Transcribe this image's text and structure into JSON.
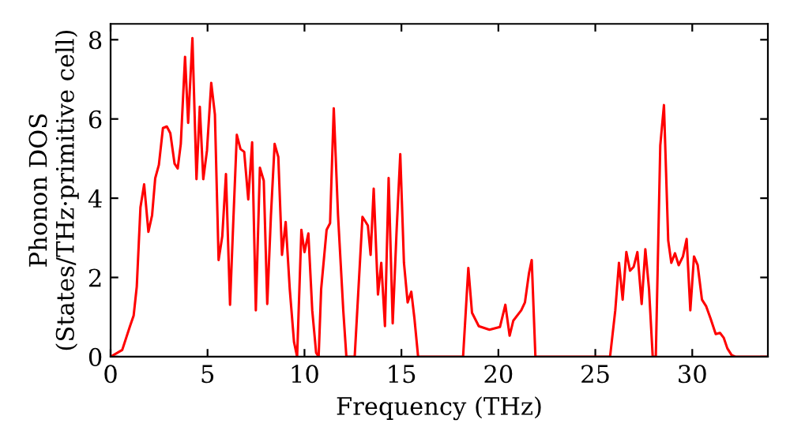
{
  "chart_data": {
    "type": "line",
    "xlabel": "Frequency (THz)",
    "ylabel": "Phonon DOS\n(States/THz·primitive cell)",
    "xlim": [
      0,
      33.9
    ],
    "ylim": [
      0,
      8.4
    ],
    "xticks": [
      0,
      5,
      10,
      15,
      20,
      25,
      30
    ],
    "yticks": [
      0,
      2,
      4,
      6,
      8
    ],
    "grid": false,
    "legend": false,
    "marker": "none",
    "line_style": "solid",
    "series": [
      {
        "color": "#ff0000",
        "x": [
          0,
          0.6,
          1.0,
          1.19,
          1.35,
          1.54,
          1.73,
          1.95,
          2.14,
          2.3,
          2.49,
          2.7,
          2.9,
          3.08,
          3.3,
          3.46,
          3.62,
          3.84,
          4.0,
          4.22,
          4.43,
          4.6,
          4.78,
          4.97,
          5.19,
          5.38,
          5.57,
          5.76,
          5.95,
          6.16,
          6.32,
          6.51,
          6.7,
          6.89,
          7.1,
          7.3,
          7.49,
          7.7,
          7.9,
          8.08,
          8.27,
          8.46,
          8.65,
          8.84,
          9.03,
          9.24,
          9.46,
          9.62,
          9.84,
          10.0,
          10.2,
          10.4,
          10.6,
          10.73,
          10.86,
          11.14,
          11.32,
          11.51,
          11.73,
          12.0,
          12.16,
          12.59,
          12.99,
          13.27,
          13.41,
          13.57,
          13.79,
          13.96,
          14.15,
          14.34,
          14.55,
          14.75,
          14.94,
          15.13,
          15.32,
          15.51,
          15.67,
          15.86,
          18.18,
          18.45,
          18.64,
          18.99,
          19.54,
          20.08,
          20.36,
          20.58,
          20.77,
          21.18,
          21.37,
          21.58,
          21.72,
          21.91,
          25.76,
          26.03,
          26.22,
          26.41,
          26.6,
          26.79,
          26.98,
          27.17,
          27.39,
          27.58,
          27.77,
          27.96,
          28.12,
          28.35,
          28.54,
          28.76,
          28.92,
          29.11,
          29.3,
          29.52,
          29.71,
          29.9,
          30.09,
          30.28,
          30.5,
          30.72,
          30.94,
          31.21,
          31.43,
          31.62,
          31.81,
          32.03,
          32.22,
          33.86
        ],
        "values": [
          0,
          0.17,
          0.77,
          1.04,
          1.77,
          3.77,
          4.35,
          3.15,
          3.57,
          4.5,
          4.84,
          5.77,
          5.81,
          5.64,
          4.87,
          4.75,
          5.37,
          7.57,
          5.9,
          8.04,
          4.48,
          6.31,
          4.48,
          5.2,
          6.91,
          6.11,
          2.44,
          3.04,
          4.61,
          1.31,
          3.31,
          5.6,
          5.24,
          5.17,
          3.97,
          5.41,
          1.17,
          4.77,
          4.44,
          1.33,
          3.57,
          5.37,
          5.04,
          2.57,
          3.4,
          1.71,
          0.37,
          0,
          3.2,
          2.64,
          3.11,
          1.17,
          0.1,
          0,
          1.71,
          3.2,
          3.37,
          6.27,
          3.57,
          1.17,
          0,
          0,
          3.53,
          3.31,
          2.57,
          4.24,
          1.57,
          2.37,
          0.77,
          4.51,
          0.84,
          3.17,
          5.11,
          2.37,
          1.37,
          1.64,
          0.97,
          0,
          0,
          2.24,
          1.11,
          0.77,
          0.68,
          0.75,
          1.31,
          0.53,
          0.91,
          1.17,
          1.37,
          2.11,
          2.44,
          0,
          0,
          1.17,
          2.37,
          1.44,
          2.64,
          2.17,
          2.27,
          2.64,
          1.33,
          2.71,
          1.71,
          0,
          0,
          5.33,
          6.35,
          2.93,
          2.37,
          2.61,
          2.31,
          2.53,
          2.97,
          1.17,
          2.53,
          2.31,
          1.44,
          1.27,
          0.97,
          0.57,
          0.6,
          0.48,
          0.21,
          0.04,
          0,
          0
        ]
      }
    ]
  }
}
